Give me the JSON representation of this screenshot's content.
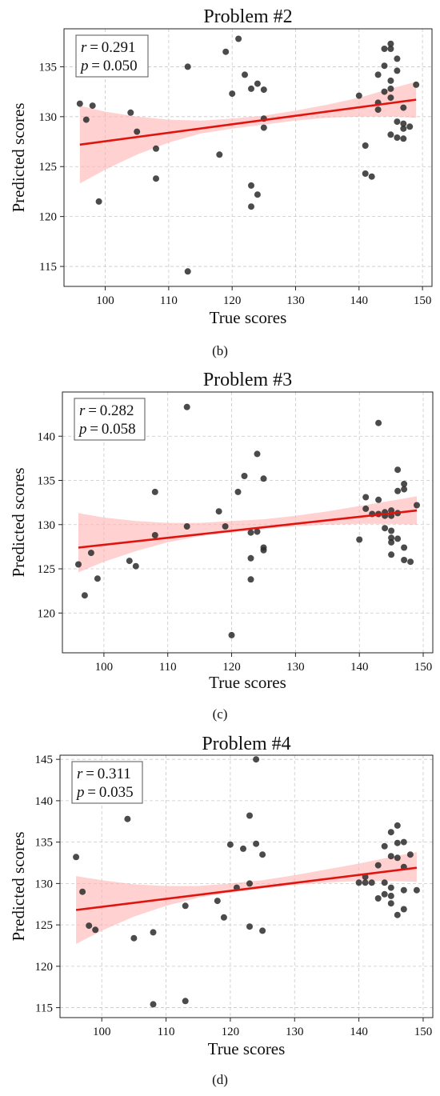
{
  "chart_data": [
    {
      "type": "scatter",
      "title": "Problem #2",
      "panel_label": "(b)",
      "xlabel": "True scores",
      "ylabel": "Predicted scores",
      "xlim": [
        93.5,
        151.5
      ],
      "ylim": [
        113.0,
        138.8
      ],
      "xticks": [
        100,
        110,
        120,
        130,
        140,
        150
      ],
      "yticks": [
        115,
        120,
        125,
        130,
        135
      ],
      "grid": true,
      "stats": {
        "r": "0.291",
        "p": "0.050"
      },
      "regression": {
        "x": [
          96,
          149
        ],
        "y": [
          127.2,
          131.7
        ]
      },
      "band": {
        "x": [
          96,
          100,
          105,
          110,
          115,
          120,
          125,
          130,
          135,
          140,
          145,
          149
        ],
        "lower": [
          123.3,
          124.7,
          126.2,
          127.4,
          128.3,
          128.8,
          129.2,
          129.6,
          129.9,
          130.0,
          130.0,
          129.9
        ],
        "upper": [
          131.1,
          130.5,
          130.0,
          129.7,
          129.6,
          129.8,
          130.1,
          130.6,
          131.2,
          131.9,
          132.8,
          133.5
        ]
      },
      "series": [
        {
          "x": [
            96,
            97,
            98,
            99,
            104,
            105,
            108,
            108,
            113,
            113,
            118,
            119,
            120,
            121,
            122,
            123,
            123,
            123,
            124,
            124,
            125,
            125,
            125,
            140,
            141,
            141,
            142,
            143,
            143,
            143,
            144,
            144,
            144,
            145,
            145,
            145,
            145,
            145,
            145,
            146,
            146,
            146,
            146,
            147,
            147,
            147,
            147,
            148,
            149
          ],
          "y": [
            131.3,
            129.7,
            131.1,
            121.5,
            130.4,
            128.5,
            126.8,
            123.8,
            135.0,
            114.5,
            126.2,
            136.5,
            132.3,
            137.8,
            134.2,
            132.8,
            123.1,
            121.0,
            133.3,
            122.2,
            132.7,
            129.8,
            128.9,
            132.1,
            127.1,
            124.3,
            124.0,
            134.2,
            131.4,
            130.7,
            136.8,
            135.1,
            132.5,
            137.3,
            136.8,
            133.6,
            132.8,
            131.9,
            128.2,
            135.8,
            134.6,
            129.5,
            127.9,
            130.9,
            128.8,
            129.3,
            127.8,
            129.0,
            133.2
          ]
        }
      ]
    },
    {
      "type": "scatter",
      "title": "Problem #3",
      "panel_label": "(c)",
      "xlabel": "True scores",
      "ylabel": "Predicted scores",
      "xlim": [
        93.5,
        151.5
      ],
      "ylim": [
        115.5,
        145.0
      ],
      "xticks": [
        100,
        110,
        120,
        130,
        140,
        150
      ],
      "yticks": [
        120,
        125,
        130,
        135,
        140
      ],
      "grid": true,
      "stats": {
        "r": "0.282",
        "p": "0.058"
      },
      "regression": {
        "x": [
          96,
          149
        ],
        "y": [
          127.4,
          131.6
        ]
      },
      "band": {
        "x": [
          96,
          100,
          105,
          110,
          115,
          120,
          125,
          130,
          135,
          140,
          145,
          149
        ],
        "lower": [
          124.6,
          125.8,
          127.0,
          128.0,
          128.7,
          129.1,
          129.5,
          129.8,
          130.0,
          130.1,
          130.1,
          130.0
        ],
        "upper": [
          131.3,
          130.8,
          130.4,
          130.2,
          130.2,
          130.4,
          130.6,
          131.0,
          131.5,
          132.1,
          132.7,
          133.2
        ]
      },
      "series": [
        {
          "x": [
            96,
            97,
            98,
            99,
            104,
            105,
            108,
            108,
            113,
            113,
            118,
            119,
            120,
            121,
            122,
            123,
            123,
            123,
            124,
            124,
            125,
            125,
            125,
            140,
            141,
            141,
            142,
            143,
            143,
            143,
            144,
            144,
            144,
            145,
            145,
            145,
            145,
            145,
            145,
            146,
            146,
            146,
            146,
            147,
            147,
            147,
            147,
            148,
            149
          ],
          "y": [
            125.5,
            122.0,
            126.8,
            123.9,
            125.9,
            125.3,
            133.7,
            128.8,
            143.3,
            129.8,
            131.5,
            129.8,
            117.5,
            133.7,
            135.5,
            129.1,
            126.2,
            123.8,
            138.0,
            129.2,
            135.2,
            127.4,
            127.1,
            128.3,
            133.1,
            131.8,
            131.2,
            141.5,
            132.8,
            131.2,
            131.4,
            131.0,
            129.6,
            131.6,
            131.0,
            129.3,
            128.5,
            128.0,
            126.6,
            136.2,
            133.8,
            131.3,
            128.4,
            134.6,
            134.0,
            127.4,
            126.0,
            125.8,
            132.2
          ]
        }
      ]
    },
    {
      "type": "scatter",
      "title": "Problem #4",
      "panel_label": "(d)",
      "xlabel": "True scores",
      "ylabel": "Predicted scores",
      "xlim": [
        93.5,
        151.5
      ],
      "ylim": [
        113.8,
        145.5
      ],
      "xticks": [
        100,
        110,
        120,
        130,
        140,
        150
      ],
      "yticks": [
        115,
        120,
        125,
        130,
        135,
        140,
        145
      ],
      "grid": true,
      "stats": {
        "r": "0.311",
        "p": "0.035"
      },
      "regression": {
        "x": [
          96,
          149
        ],
        "y": [
          126.8,
          131.9
        ]
      },
      "band": {
        "x": [
          96,
          100,
          105,
          110,
          115,
          120,
          125,
          130,
          135,
          140,
          145,
          149
        ],
        "lower": [
          122.7,
          124.3,
          126.0,
          127.3,
          128.3,
          128.9,
          129.4,
          129.8,
          130.1,
          130.3,
          130.3,
          130.2
        ],
        "upper": [
          130.9,
          130.4,
          129.9,
          129.7,
          129.7,
          130.0,
          130.4,
          131.0,
          131.7,
          132.4,
          133.2,
          133.8
        ]
      },
      "series": [
        {
          "x": [
            96,
            97,
            98,
            99,
            104,
            105,
            108,
            108,
            113,
            113,
            118,
            119,
            120,
            121,
            122,
            123,
            123,
            123,
            124,
            124,
            125,
            125,
            140,
            141,
            141,
            142,
            143,
            143,
            144,
            144,
            144,
            145,
            145,
            145,
            145,
            145,
            146,
            146,
            146,
            146,
            147,
            147,
            147,
            147,
            148,
            149
          ],
          "y": [
            133.2,
            129.0,
            124.9,
            124.4,
            137.8,
            123.4,
            124.1,
            115.4,
            127.3,
            115.8,
            127.9,
            125.9,
            134.7,
            129.5,
            134.2,
            138.2,
            130.0,
            124.8,
            134.8,
            145.0,
            133.5,
            124.3,
            130.1,
            130.8,
            130.1,
            130.1,
            132.2,
            128.2,
            134.5,
            128.7,
            130.1,
            136.2,
            133.3,
            129.5,
            128.5,
            127.6,
            137.0,
            134.9,
            133.1,
            126.2,
            135.0,
            132.0,
            129.2,
            126.9,
            133.5,
            129.2
          ]
        }
      ]
    }
  ]
}
